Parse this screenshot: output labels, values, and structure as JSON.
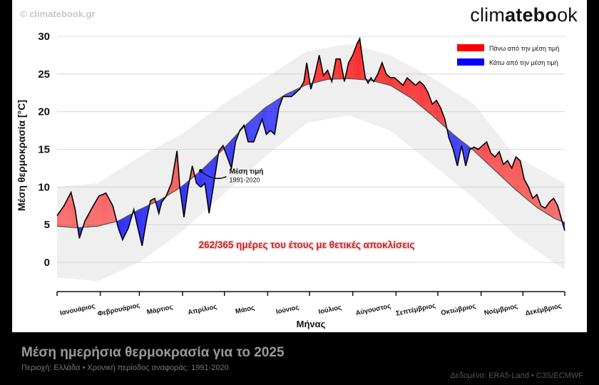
{
  "watermark": "© climatebook.gr",
  "brand": {
    "prefix": "clim",
    "bold": "atebo",
    "suffix": "ok"
  },
  "footer": {
    "title": "Μέση ημερήσια θερμοκρασία για το 2025",
    "subtitle": "Περιοχή: Ελλάδα • Χρονική περίοδος αναφοράς: 1991-2020",
    "source": "Δεδομένα: ERA5-Land • C3S/ECMWF"
  },
  "colors": {
    "above": "#ff0000",
    "below": "#0000ff",
    "band": "#efefef",
    "line": "#000000",
    "mean": "#555555",
    "stats": "#b03030"
  },
  "chart_data": {
    "type": "area",
    "title": "Μέση ημερήσια θερμοκρασία για το 2025",
    "xlabel": "Μήνας",
    "ylabel": "Μέση θερμοκρασία [°C]",
    "ylim": [
      -4,
      31
    ],
    "xlim": [
      1,
      365
    ],
    "yticks": [
      0,
      5,
      10,
      15,
      20,
      25,
      30
    ],
    "months": [
      "Ιανουάριος",
      "Φεβρουάριος",
      "Μάρτιος",
      "Απρίλιος",
      "Μάιος",
      "Ιούνιος",
      "Ιούλιος",
      "Αύγουστος",
      "Σεπτέμβριος",
      "Οκτώβριος",
      "Νοέμβριος",
      "Δεκέμβριος"
    ],
    "month_starts": [
      1,
      32,
      60,
      91,
      121,
      152,
      182,
      213,
      244,
      274,
      305,
      335
    ],
    "legend": {
      "above": "Πάνω από την μέση τιμή",
      "below": "Κάτω από την μέση τιμή",
      "position": "top-right"
    },
    "annotation": {
      "title": "Μέση τιμή",
      "subtitle": "1991-2020",
      "day": 104
    },
    "stats_text": "262/365 ημέρες του έτους με θετικές αποκλίσεις",
    "series": [
      {
        "name": "2025",
        "points": [
          [
            1,
            6.2
          ],
          [
            6,
            7.5
          ],
          [
            11,
            9.3
          ],
          [
            14,
            7.0
          ],
          [
            17,
            3.2
          ],
          [
            21,
            5.5
          ],
          [
            26,
            7.2
          ],
          [
            31,
            8.8
          ],
          [
            36,
            9.2
          ],
          [
            41,
            7.5
          ],
          [
            45,
            4.5
          ],
          [
            48,
            3.0
          ],
          [
            52,
            4.5
          ],
          [
            56,
            7.0
          ],
          [
            59,
            4.5
          ],
          [
            62,
            2.2
          ],
          [
            65,
            5.5
          ],
          [
            68,
            8.2
          ],
          [
            71,
            8.5
          ],
          [
            74,
            6.5
          ],
          [
            76,
            8.0
          ],
          [
            79,
            8.7
          ],
          [
            83,
            10.5
          ],
          [
            87,
            14.8
          ],
          [
            89,
            10.0
          ],
          [
            92,
            6.0
          ],
          [
            95,
            10.0
          ],
          [
            98,
            12.8
          ],
          [
            101,
            10.5
          ],
          [
            104,
            10.0
          ],
          [
            107,
            10.5
          ],
          [
            110,
            6.5
          ],
          [
            113,
            10.0
          ],
          [
            117,
            14.8
          ],
          [
            120,
            15.5
          ],
          [
            123,
            14.0
          ],
          [
            126,
            12.5
          ],
          [
            129,
            16.0
          ],
          [
            132,
            17.5
          ],
          [
            135,
            18.2
          ],
          [
            138,
            16.0
          ],
          [
            142,
            16.0
          ],
          [
            145,
            17.5
          ],
          [
            148,
            19.0
          ],
          [
            151,
            17.0
          ],
          [
            154,
            17.5
          ],
          [
            157,
            17.0
          ],
          [
            160,
            20.5
          ],
          [
            163,
            22.0
          ],
          [
            166,
            22.0
          ],
          [
            169,
            22.0
          ],
          [
            172,
            22.5
          ],
          [
            175,
            23.0
          ],
          [
            178,
            24.0
          ],
          [
            180,
            26.5
          ],
          [
            183,
            23.0
          ],
          [
            186,
            25.0
          ],
          [
            189,
            27.5
          ],
          [
            192,
            24.8
          ],
          [
            195,
            25.5
          ],
          [
            198,
            24.0
          ],
          [
            201,
            27.0
          ],
          [
            204,
            27.0
          ],
          [
            207,
            24.0
          ],
          [
            210,
            26.5
          ],
          [
            213,
            27.5
          ],
          [
            216,
            29.0
          ],
          [
            218,
            29.7
          ],
          [
            220,
            27.0
          ],
          [
            222,
            24.5
          ],
          [
            224,
            23.8
          ],
          [
            226,
            24.5
          ],
          [
            228,
            24.0
          ],
          [
            231,
            25.0
          ],
          [
            234,
            26.5
          ],
          [
            237,
            25.0
          ],
          [
            240,
            24.5
          ],
          [
            243,
            24.5
          ],
          [
            246,
            24.0
          ],
          [
            249,
            23.5
          ],
          [
            252,
            24.5
          ],
          [
            255,
            24.0
          ],
          [
            258,
            23.5
          ],
          [
            261,
            24.0
          ],
          [
            264,
            23.5
          ],
          [
            267,
            22.5
          ],
          [
            270,
            21.0
          ],
          [
            273,
            21.5
          ],
          [
            276,
            20.5
          ],
          [
            279,
            19.0
          ],
          [
            282,
            16.5
          ],
          [
            285,
            15.0
          ],
          [
            288,
            12.8
          ],
          [
            291,
            15.5
          ],
          [
            294,
            12.8
          ],
          [
            297,
            15.0
          ],
          [
            300,
            15.3
          ],
          [
            303,
            15.0
          ],
          [
            306,
            15.5
          ],
          [
            309,
            16.0
          ],
          [
            312,
            14.5
          ],
          [
            315,
            14.0
          ],
          [
            318,
            14.7
          ],
          [
            321,
            13.0
          ],
          [
            324,
            13.5
          ],
          [
            327,
            12.5
          ],
          [
            330,
            14.0
          ],
          [
            333,
            13.5
          ],
          [
            336,
            11.0
          ],
          [
            339,
            10.0
          ],
          [
            342,
            8.5
          ],
          [
            345,
            9.0
          ],
          [
            348,
            7.5
          ],
          [
            351,
            7.2
          ],
          [
            354,
            8.0
          ],
          [
            357,
            8.5
          ],
          [
            360,
            7.5
          ],
          [
            363,
            5.5
          ],
          [
            365,
            4.2
          ]
        ]
      },
      {
        "name": "Μέση τιμή 1991-2020",
        "points": [
          [
            1,
            4.8
          ],
          [
            15,
            4.6
          ],
          [
            30,
            4.8
          ],
          [
            45,
            5.5
          ],
          [
            60,
            7.0
          ],
          [
            75,
            8.3
          ],
          [
            90,
            10.0
          ],
          [
            105,
            12.3
          ],
          [
            120,
            15.0
          ],
          [
            135,
            18.0
          ],
          [
            150,
            20.5
          ],
          [
            165,
            22.3
          ],
          [
            180,
            23.6
          ],
          [
            195,
            24.3
          ],
          [
            210,
            24.4
          ],
          [
            225,
            24.2
          ],
          [
            240,
            23.5
          ],
          [
            255,
            21.8
          ],
          [
            270,
            19.5
          ],
          [
            285,
            17.0
          ],
          [
            300,
            14.8
          ],
          [
            315,
            12.2
          ],
          [
            330,
            9.6
          ],
          [
            345,
            7.3
          ],
          [
            358,
            5.8
          ],
          [
            365,
            5.3
          ]
        ]
      },
      {
        "name": "Εύρος",
        "upper": [
          [
            1,
            10.0
          ],
          [
            30,
            10.5
          ],
          [
            60,
            14.0
          ],
          [
            90,
            17.0
          ],
          [
            120,
            21.0
          ],
          [
            150,
            24.5
          ],
          [
            180,
            28.0
          ],
          [
            210,
            29.0
          ],
          [
            240,
            27.5
          ],
          [
            270,
            24.5
          ],
          [
            300,
            21.0
          ],
          [
            330,
            14.0
          ],
          [
            365,
            10.5
          ]
        ],
        "lower": [
          [
            1,
            -2.0
          ],
          [
            30,
            -2.5
          ],
          [
            60,
            0.0
          ],
          [
            90,
            4.0
          ],
          [
            120,
            9.0
          ],
          [
            150,
            14.0
          ],
          [
            180,
            18.5
          ],
          [
            210,
            19.5
          ],
          [
            240,
            17.5
          ],
          [
            270,
            13.0
          ],
          [
            300,
            8.5
          ],
          [
            330,
            3.5
          ],
          [
            365,
            -1.0
          ]
        ]
      }
    ]
  }
}
